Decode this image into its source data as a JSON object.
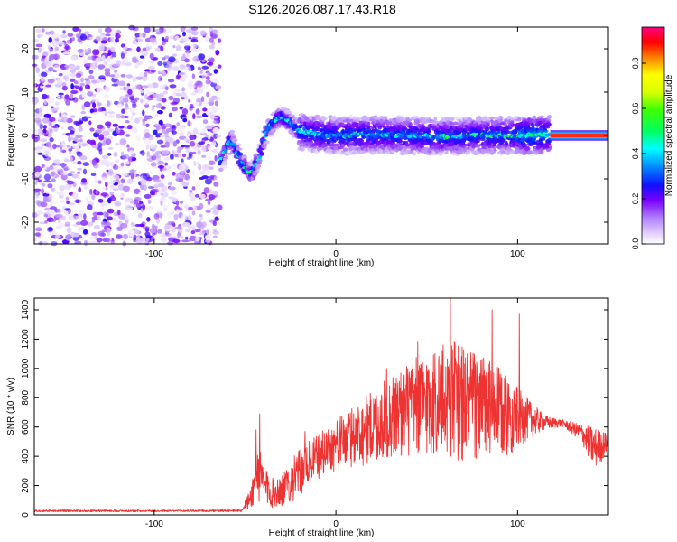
{
  "title": "S126.2026.087.17.43.R18",
  "chart_data": [
    {
      "type": "heatmap",
      "name": "spectrogram",
      "xlabel": "Height of straight line (km)",
      "ylabel": "Frequency (Hz)",
      "xlim": [
        -166,
        150
      ],
      "ylim": [
        -25,
        25
      ],
      "xticks": [
        -100,
        0,
        100
      ],
      "yticks": [
        -20,
        -10,
        0,
        10,
        20
      ],
      "colorbar": {
        "label": "Normalized spectral amplitude",
        "ticks": [
          0.0,
          0.2,
          0.4,
          0.6,
          0.8
        ],
        "tick_labels": [
          "0.0",
          "0.2",
          "0.4",
          "0.6",
          "0.8"
        ],
        "range": [
          0,
          0.96
        ]
      },
      "features": {
        "noise_region_x": [
          -166,
          -64
        ],
        "signal_ridge": [
          {
            "x": -63,
            "f": -6
          },
          {
            "x": -58,
            "f": -1
          },
          {
            "x": -52,
            "f": -6
          },
          {
            "x": -47,
            "f": -9
          },
          {
            "x": -42,
            "f": -5
          },
          {
            "x": -39,
            "f": 0
          },
          {
            "x": -35,
            "f": 3
          },
          {
            "x": -30,
            "f": 4.5
          },
          {
            "x": -25,
            "f": 3
          },
          {
            "x": -20,
            "f": 1
          },
          {
            "x": -10,
            "f": 0.3
          },
          {
            "x": 0,
            "f": 0
          },
          {
            "x": 20,
            "f": 0.2
          },
          {
            "x": 40,
            "f": 0
          },
          {
            "x": 60,
            "f": -0.3
          },
          {
            "x": 80,
            "f": 0
          },
          {
            "x": 100,
            "f": 0
          },
          {
            "x": 115,
            "f": 0.2
          },
          {
            "x": 150,
            "f": 0
          }
        ],
        "tone_start_x": 118
      }
    },
    {
      "type": "line",
      "name": "snr",
      "xlabel": "Height of straight line (km)",
      "ylabel": "SNR (10 * v/v)",
      "xlim": [
        -166,
        150
      ],
      "ylim": [
        0,
        1480
      ],
      "xticks": [
        -100,
        0,
        100
      ],
      "yticks": [
        0,
        200,
        400,
        600,
        800,
        1000,
        1200,
        1400
      ],
      "color": "#ee3333",
      "envelope": [
        {
          "x": -166,
          "lo": 10,
          "hi": 45
        },
        {
          "x": -60,
          "lo": 10,
          "hi": 45
        },
        {
          "x": -52,
          "lo": 10,
          "hi": 50
        },
        {
          "x": -47,
          "lo": 40,
          "hi": 180
        },
        {
          "x": -43,
          "lo": 80,
          "hi": 500
        },
        {
          "x": -40,
          "lo": 60,
          "hi": 350
        },
        {
          "x": -35,
          "lo": 40,
          "hi": 250
        },
        {
          "x": -28,
          "lo": 60,
          "hi": 300
        },
        {
          "x": -22,
          "lo": 100,
          "hi": 420
        },
        {
          "x": -15,
          "lo": 200,
          "hi": 500
        },
        {
          "x": -5,
          "lo": 280,
          "hi": 600
        },
        {
          "x": 10,
          "lo": 320,
          "hi": 750
        },
        {
          "x": 25,
          "lo": 350,
          "hi": 900
        },
        {
          "x": 40,
          "lo": 380,
          "hi": 1050
        },
        {
          "x": 55,
          "lo": 380,
          "hi": 1150
        },
        {
          "x": 65,
          "lo": 360,
          "hi": 1200
        },
        {
          "x": 80,
          "lo": 350,
          "hi": 1100
        },
        {
          "x": 95,
          "lo": 400,
          "hi": 950
        },
        {
          "x": 105,
          "lo": 500,
          "hi": 800
        },
        {
          "x": 115,
          "lo": 580,
          "hi": 680
        },
        {
          "x": 125,
          "lo": 600,
          "hi": 650
        },
        {
          "x": 135,
          "lo": 500,
          "hi": 620
        },
        {
          "x": 142,
          "lo": 300,
          "hi": 600
        },
        {
          "x": 150,
          "lo": 420,
          "hi": 560
        }
      ],
      "peaks": [
        {
          "x": 63,
          "y": 1480
        },
        {
          "x": 86,
          "y": 1400
        },
        {
          "x": 101,
          "y": 1370
        },
        {
          "x": 45,
          "y": 1180
        },
        {
          "x": -42,
          "y": 690
        },
        {
          "x": -44,
          "y": 580
        },
        {
          "x": -17,
          "y": 570
        },
        {
          "x": 28,
          "y": 1000
        }
      ]
    }
  ]
}
